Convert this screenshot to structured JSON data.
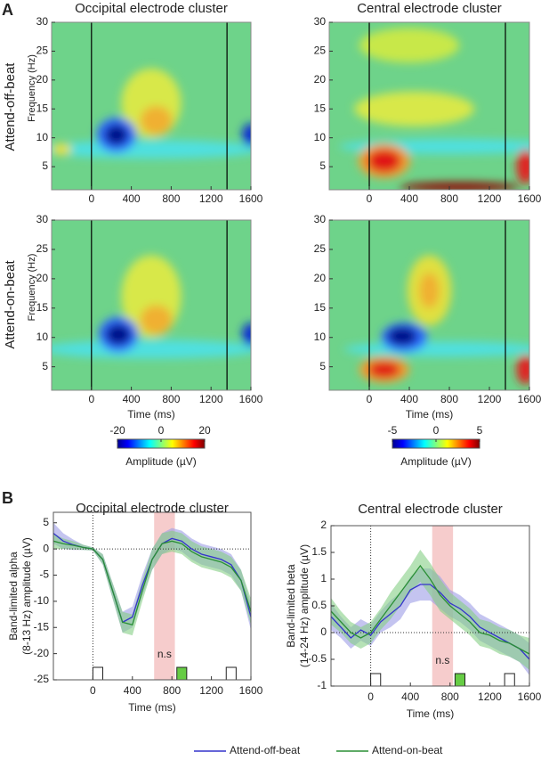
{
  "figure": {
    "panels": [
      "A",
      "B"
    ],
    "rows": [
      "Attend-off-beat",
      "Attend-on-beat"
    ]
  },
  "chart_data": [
    {
      "type": "heatmap",
      "title": "Occipital electrode cluster",
      "ylabel": "Frequency (Hz)",
      "xlim": [
        -400,
        1600
      ],
      "ylim": [
        1,
        30
      ],
      "xticks": [
        0,
        400,
        800,
        1200,
        1600
      ],
      "yticks": [
        5,
        10,
        15,
        20,
        25,
        30
      ],
      "vlines": [
        0,
        1360
      ]
    },
    {
      "type": "heatmap",
      "title": "Central electrode cluster",
      "xlim": [
        -400,
        1600
      ],
      "ylim": [
        1,
        30
      ],
      "xticks": [
        0,
        400,
        800,
        1200,
        1600
      ],
      "yticks": [
        5,
        10,
        15,
        20,
        25,
        30
      ],
      "vlines": [
        0,
        1360
      ]
    },
    {
      "type": "heatmap",
      "ylabel": "Frequency (Hz)",
      "xlabel": "Time (ms)",
      "xlim": [
        -400,
        1600
      ],
      "ylim": [
        1,
        30
      ],
      "xticks": [
        0,
        400,
        800,
        1200,
        1600
      ],
      "yticks": [
        5,
        10,
        15,
        20,
        25,
        30
      ],
      "vlines": [
        0,
        1360
      ]
    },
    {
      "type": "heatmap",
      "xlabel": "Time (ms)",
      "xlim": [
        -400,
        1600
      ],
      "ylim": [
        1,
        30
      ],
      "xticks": [
        0,
        400,
        800,
        1200,
        1600
      ],
      "yticks": [
        5,
        10,
        15,
        20,
        25,
        30
      ],
      "vlines": [
        0,
        1360
      ]
    },
    {
      "type": "colorbar",
      "label": "Amplitude (µV)",
      "clim": [
        -20,
        20
      ],
      "ticks": [
        -20,
        0,
        20
      ]
    },
    {
      "type": "colorbar",
      "label": "Amplitude (µV)",
      "clim": [
        -5,
        5
      ],
      "ticks": [
        -5,
        0,
        5
      ]
    },
    {
      "type": "line",
      "title": "Occipital electrode cluster",
      "ylabel": [
        "Band-limited alpha",
        "(8-13 Hz) amplitude (µV)"
      ],
      "xlabel": "Time (ms)",
      "x": [
        -400,
        -300,
        -200,
        -100,
        0,
        100,
        200,
        300,
        400,
        500,
        600,
        700,
        800,
        900,
        1000,
        1100,
        1200,
        1300,
        1400,
        1500,
        1600
      ],
      "series": [
        {
          "name": "Attend-off-beat",
          "color": "#3434cc",
          "band_color": "#9c9ce6",
          "values": [
            3,
            1.5,
            0.8,
            0.3,
            0,
            -2,
            -8,
            -14,
            -13,
            -7,
            -2,
            1,
            2,
            1.5,
            0,
            -1,
            -1.5,
            -2,
            -3,
            -6,
            -13
          ],
          "errors": [
            2,
            1.5,
            1,
            0.5,
            0.3,
            1,
            1.5,
            2,
            2,
            2,
            2,
            2,
            2,
            2,
            2,
            2,
            2,
            2,
            2,
            2,
            2.5
          ]
        },
        {
          "name": "Attend-on-beat",
          "color": "#2a8f35",
          "band_color": "#86cf86",
          "values": [
            1.5,
            1,
            0.7,
            0.3,
            0,
            -2,
            -8,
            -14,
            -14.5,
            -8,
            -2,
            1,
            1.5,
            1,
            -0.5,
            -1.5,
            -2,
            -2.5,
            -3.5,
            -6,
            -12
          ],
          "errors": [
            1.5,
            1,
            0.8,
            0.5,
            0.3,
            1,
            1.5,
            2,
            2,
            2,
            2,
            2,
            2,
            2,
            2,
            2,
            2,
            2,
            2,
            2,
            2.5
          ]
        }
      ],
      "xlim": [
        -400,
        1600
      ],
      "ylim": [
        -25,
        7
      ],
      "xticks": [
        0,
        400,
        800,
        1200,
        1600
      ],
      "yticks": [
        5,
        0,
        -5,
        -10,
        -15,
        -20,
        -25
      ],
      "highlight": {
        "range": [
          620,
          830
        ],
        "color": "#f6cccc"
      },
      "annotation": "n.s",
      "events": [
        {
          "start": 0,
          "end": 100,
          "color": "#ffffff"
        },
        {
          "start": 850,
          "end": 950,
          "color": "#66cc44"
        },
        {
          "start": 1350,
          "end": 1450,
          "color": "#ffffff"
        }
      ]
    },
    {
      "type": "line",
      "title": "Central electrode cluster",
      "ylabel": [
        "Band-limited beta",
        "(14-24 Hz) amplitude (µV)"
      ],
      "xlabel": "Time (ms)",
      "x": [
        -400,
        -300,
        -200,
        -100,
        0,
        100,
        200,
        300,
        400,
        500,
        600,
        700,
        800,
        900,
        1000,
        1100,
        1200,
        1300,
        1400,
        1500,
        1600
      ],
      "series": [
        {
          "name": "Attend-off-beat",
          "color": "#3434cc",
          "band_color": "#9c9ce6",
          "values": [
            0.3,
            0.1,
            -0.1,
            0.05,
            -0.05,
            0.2,
            0.35,
            0.5,
            0.8,
            0.9,
            0.9,
            0.75,
            0.55,
            0.45,
            0.3,
            0.1,
            0,
            -0.1,
            -0.2,
            -0.3,
            -0.5
          ],
          "errors": [
            0.25,
            0.2,
            0.2,
            0.2,
            0.2,
            0.2,
            0.25,
            0.25,
            0.25,
            0.3,
            0.3,
            0.3,
            0.25,
            0.25,
            0.25,
            0.25,
            0.25,
            0.25,
            0.25,
            0.25,
            0.3
          ]
        },
        {
          "name": "Attend-on-beat",
          "color": "#2a8f35",
          "band_color": "#86cf86",
          "values": [
            0.4,
            0.2,
            0,
            -0.1,
            0,
            0.25,
            0.5,
            0.75,
            1,
            1.25,
            1,
            0.7,
            0.5,
            0.35,
            0.2,
            0,
            -0.05,
            -0.15,
            -0.2,
            -0.3,
            -0.4
          ],
          "errors": [
            0.25,
            0.2,
            0.2,
            0.2,
            0.2,
            0.2,
            0.25,
            0.25,
            0.25,
            0.3,
            0.3,
            0.3,
            0.25,
            0.25,
            0.25,
            0.25,
            0.25,
            0.25,
            0.25,
            0.25,
            0.3
          ]
        }
      ],
      "xlim": [
        -400,
        1600
      ],
      "ylim": [
        -1,
        2
      ],
      "xticks": [
        0,
        400,
        800,
        1200,
        1600
      ],
      "yticks": [
        2,
        1.5,
        1,
        0.5,
        0,
        -0.5,
        -1
      ],
      "highlight": {
        "range": [
          620,
          830
        ],
        "color": "#f6cccc"
      },
      "annotation": "n.s",
      "events": [
        {
          "start": 0,
          "end": 100,
          "color": "#ffffff"
        },
        {
          "start": 850,
          "end": 950,
          "color": "#66cc44"
        },
        {
          "start": 1350,
          "end": 1450,
          "color": "#ffffff"
        }
      ]
    }
  ]
}
